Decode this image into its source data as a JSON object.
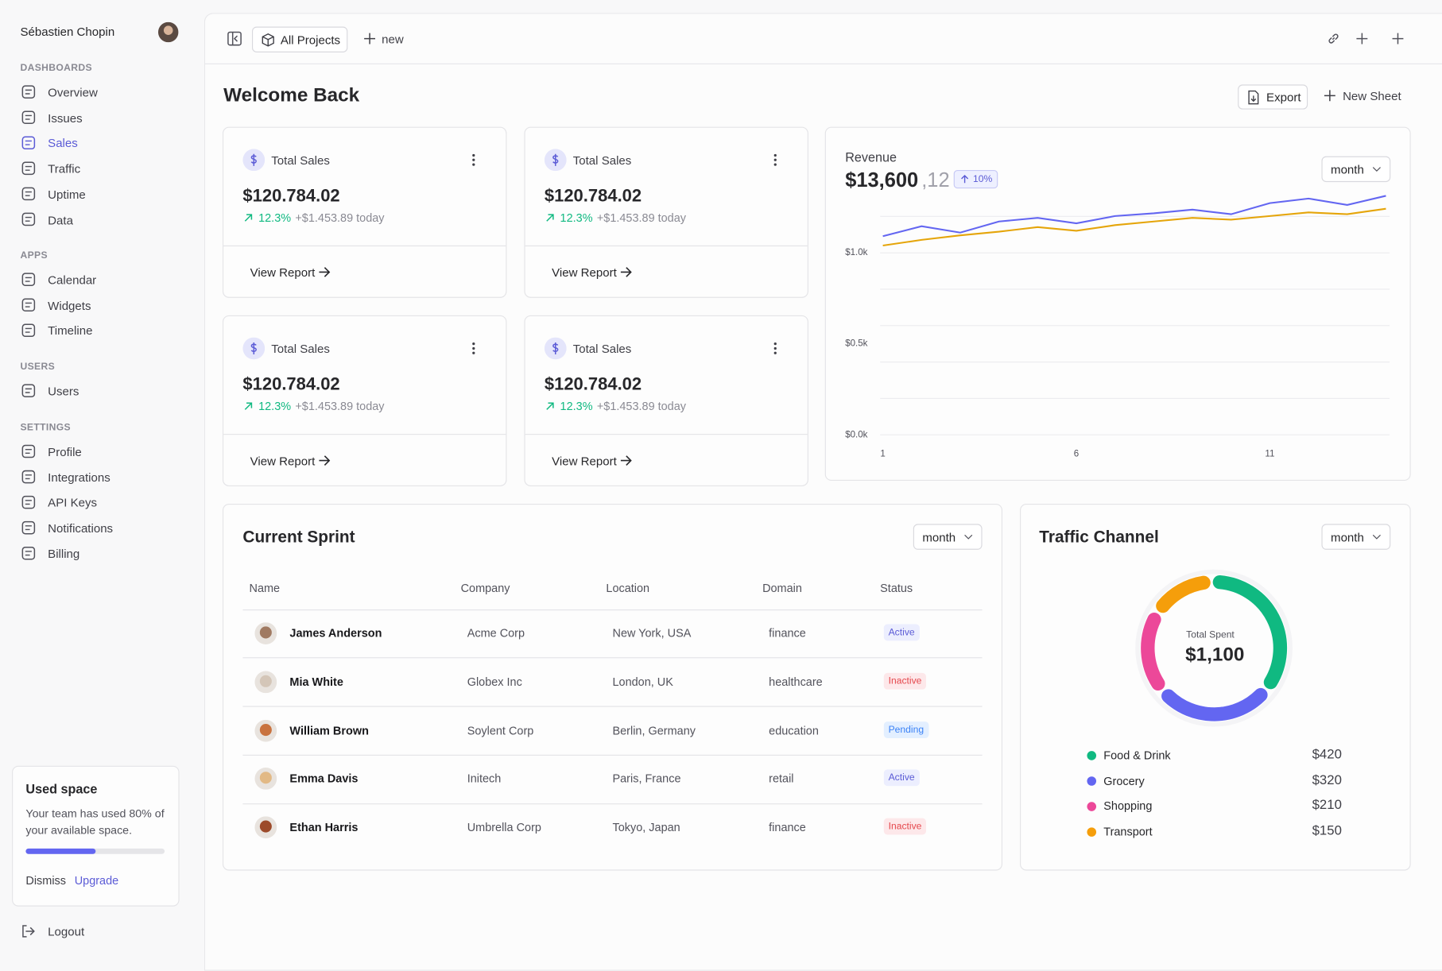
{
  "sidebar": {
    "user": "Sébastien Chopin",
    "sections": [
      {
        "title": "DASHBOARDS",
        "items": [
          "Overview",
          "Issues",
          "Sales",
          "Traffic",
          "Uptime",
          "Data"
        ]
      },
      {
        "title": "APPS",
        "items": [
          "Calendar",
          "Widgets",
          "Timeline"
        ]
      },
      {
        "title": "USERS",
        "items": [
          "Users"
        ]
      },
      {
        "title": "SETTINGS",
        "items": [
          "Profile",
          "Integrations",
          "API Keys",
          "Notifications",
          "Billing"
        ]
      }
    ],
    "used_space": {
      "title": "Used space",
      "text": "Your team has used 80% of your available space.",
      "dismiss": "Dismiss",
      "upgrade": "Upgrade"
    },
    "logout": "Logout"
  },
  "topbar": {
    "project": "All Projects",
    "new": "new"
  },
  "header": {
    "title": "Welcome Back",
    "export": "Export",
    "new_sheet": "New Sheet"
  },
  "stat_cards": [
    {
      "label": "Total Sales",
      "value": "$120.784.02",
      "change": "12.3%",
      "delta": "+$1.453.89 today",
      "link": "View Report"
    },
    {
      "label": "Total Sales",
      "value": "$120.784.02",
      "change": "12.3%",
      "delta": "+$1.453.89 today",
      "link": "View Report"
    },
    {
      "label": "Total Sales",
      "value": "$120.784.02",
      "change": "12.3%",
      "delta": "+$1.453.89 today",
      "link": "View Report"
    },
    {
      "label": "Total Sales",
      "value": "$120.784.02",
      "change": "12.3%",
      "delta": "+$1.453.89 today",
      "link": "View Report"
    }
  ],
  "revenue": {
    "title": "Revenue",
    "total": "$13,600",
    "count": ",12",
    "badge": "10%",
    "filter": "month",
    "type": "line",
    "x": [
      1,
      2,
      3,
      4,
      5,
      6,
      7,
      8,
      9,
      10,
      11,
      12,
      13,
      14
    ],
    "xlim": [
      1,
      14
    ],
    "xticks": [
      1,
      6,
      11
    ],
    "ylim": [
      0,
      1350
    ],
    "yticks": [
      {
        "value": 0,
        "label": "$0.0k"
      },
      {
        "value": 500,
        "label": "$0.5k"
      },
      {
        "value": 1000,
        "label": "$1.0k"
      }
    ],
    "grid": [
      0,
      200,
      400,
      600,
      800,
      1000,
      1200
    ],
    "series": [
      {
        "color": "#6366f1",
        "values": [
          1091,
          1146,
          1111,
          1172,
          1192,
          1162,
          1202,
          1217,
          1237,
          1212,
          1273,
          1298,
          1263,
          1313
        ]
      },
      {
        "color": "#e5a50a",
        "values": [
          1040,
          1071,
          1096,
          1116,
          1141,
          1121,
          1152,
          1172,
          1192,
          1182,
          1202,
          1222,
          1212,
          1242
        ]
      }
    ]
  },
  "sprint": {
    "title": "Current Sprint",
    "filter": "month",
    "columns": [
      "Name",
      "Company",
      "Location",
      "Domain",
      "Status"
    ],
    "rows": [
      [
        "James Anderson",
        "Acme Corp",
        "New York, USA",
        "finance",
        "Active"
      ],
      [
        "Mia White",
        "Globex Inc",
        "London, UK",
        "healthcare",
        "Inactive"
      ],
      [
        "William Brown",
        "Soylent Corp",
        "Berlin, Germany",
        "education",
        "Pending"
      ],
      [
        "Emma Davis",
        "Initech",
        "Paris, France",
        "retail",
        "Active"
      ],
      [
        "Ethan Harris",
        "Umbrella Corp",
        "Tokyo, Japan",
        "finance",
        "Inactive"
      ]
    ]
  },
  "traffic": {
    "title": "Traffic Channel",
    "filter": "month",
    "center_label": "Total Spent",
    "center_value": "$1,100",
    "type": "donut",
    "series": [
      {
        "name": "Food & Drink",
        "color": "#10b981",
        "value": 420,
        "label": "$420"
      },
      {
        "name": "Grocery",
        "color": "#6366f1",
        "value": 320,
        "label": "$320"
      },
      {
        "name": "Shopping",
        "color": "#ec4899",
        "value": 210,
        "label": "$210"
      },
      {
        "name": "Transport",
        "color": "#f59e0b",
        "value": 150,
        "label": "$150"
      }
    ]
  }
}
